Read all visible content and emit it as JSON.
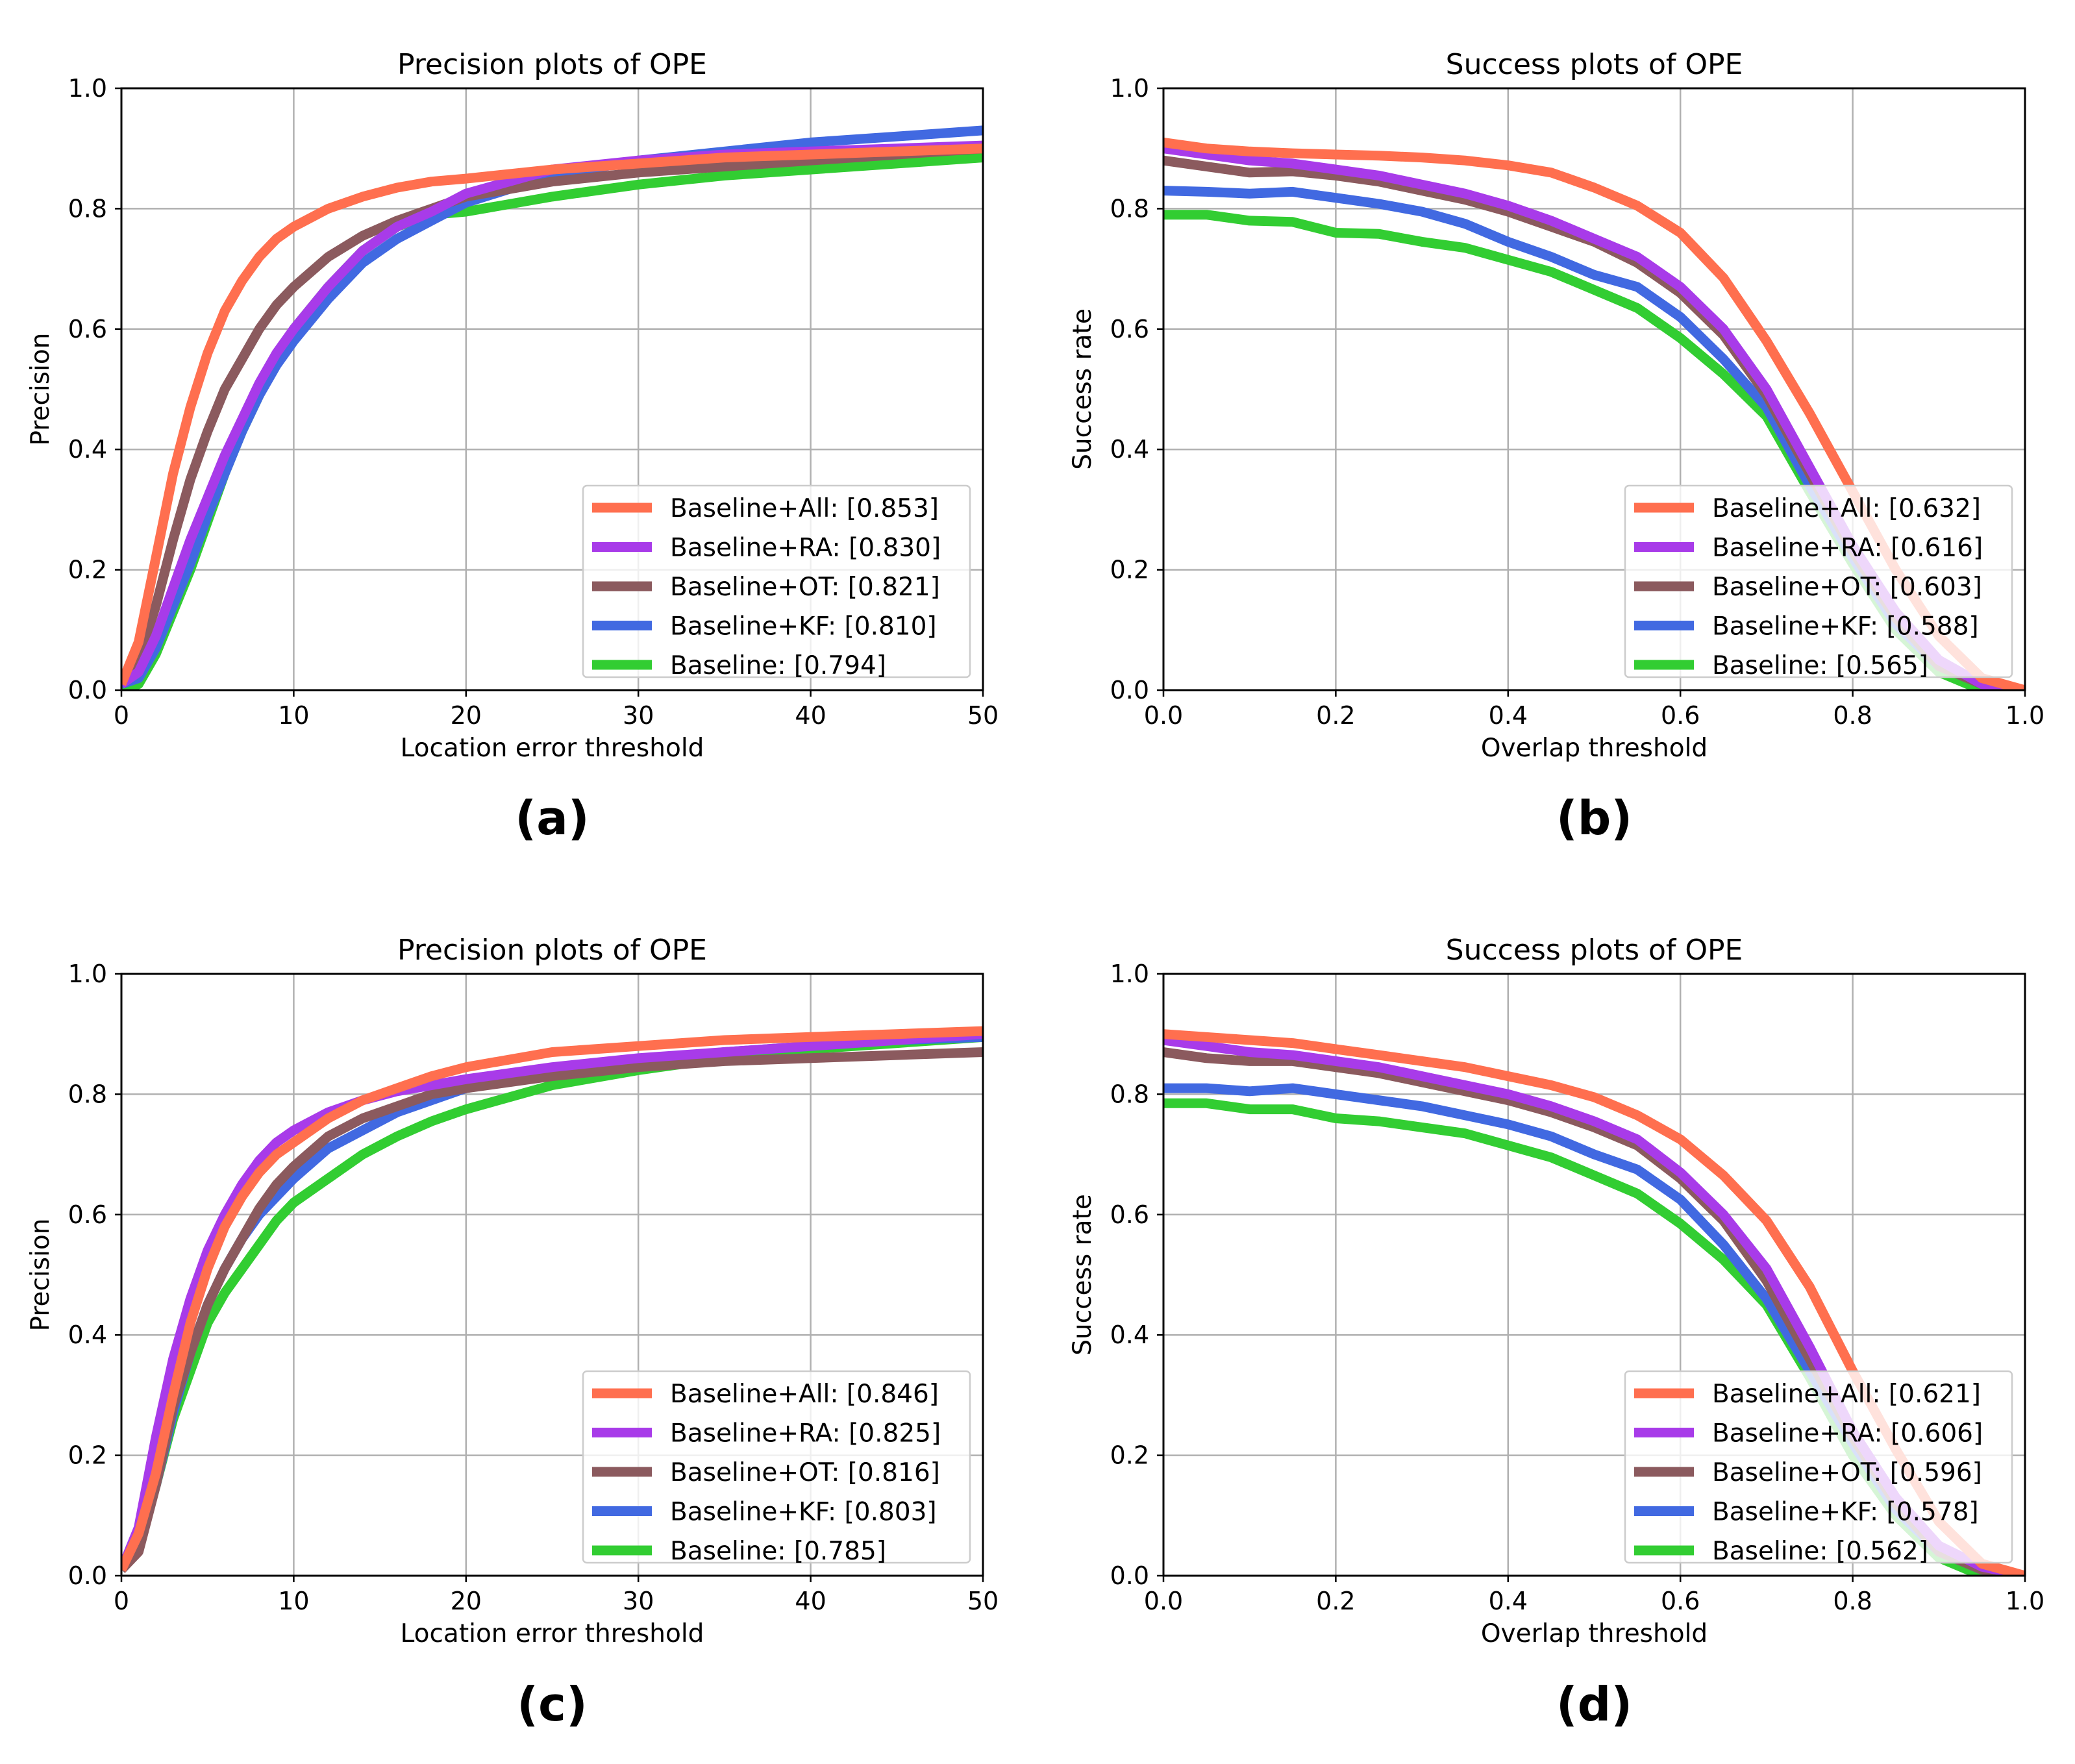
{
  "figure": {
    "panels": [
      "(a)",
      "(b)",
      "(c)",
      "(d)"
    ]
  },
  "colors": {
    "Baseline+All": "#ff6f4f",
    "Baseline+RA": "#a83be9",
    "Baseline+OT": "#8b5a5e",
    "Baseline+KF": "#4169e1",
    "Baseline": "#32cd32",
    "grid": "#b0b0b0",
    "axis": "#000000"
  },
  "chart_data": [
    {
      "id": "a",
      "type": "line",
      "title": "Precision plots of OPE",
      "xlabel": "Location error threshold",
      "ylabel": "Precision",
      "xlim": [
        0,
        50
      ],
      "ylim": [
        0,
        1
      ],
      "xticks": [
        0,
        10,
        20,
        30,
        40,
        50
      ],
      "xtick_labels": [
        "0",
        "10",
        "20",
        "30",
        "40",
        "50"
      ],
      "yticks": [
        0,
        0.2,
        0.4,
        0.6,
        0.8,
        1.0
      ],
      "ytick_labels": [
        "0.0",
        "0.2",
        "0.4",
        "0.6",
        "0.8",
        "1.0"
      ],
      "grid": true,
      "legend_position": "lower-right",
      "x": [
        0,
        1,
        2,
        3,
        4,
        5,
        6,
        7,
        8,
        9,
        10,
        12,
        14,
        16,
        18,
        20,
        25,
        30,
        35,
        40,
        45,
        50
      ],
      "series": [
        {
          "name": "Baseline+All",
          "legend": "Baseline+All: [0.853]",
          "values": [
            0.01,
            0.08,
            0.22,
            0.36,
            0.47,
            0.56,
            0.63,
            0.68,
            0.72,
            0.75,
            0.77,
            0.8,
            0.82,
            0.835,
            0.845,
            0.85,
            0.865,
            0.875,
            0.885,
            0.89,
            0.895,
            0.9
          ]
        },
        {
          "name": "Baseline+RA",
          "legend": "Baseline+RA: [0.830]",
          "values": [
            0.01,
            0.03,
            0.09,
            0.17,
            0.25,
            0.32,
            0.39,
            0.45,
            0.51,
            0.56,
            0.6,
            0.67,
            0.73,
            0.77,
            0.795,
            0.825,
            0.865,
            0.88,
            0.89,
            0.895,
            0.9,
            0.905
          ]
        },
        {
          "name": "Baseline+OT",
          "legend": "Baseline+OT: [0.821]",
          "values": [
            0.01,
            0.05,
            0.14,
            0.25,
            0.35,
            0.43,
            0.5,
            0.55,
            0.6,
            0.64,
            0.67,
            0.72,
            0.755,
            0.78,
            0.8,
            0.82,
            0.845,
            0.86,
            0.87,
            0.88,
            0.89,
            0.9
          ]
        },
        {
          "name": "Baseline+KF",
          "legend": "Baseline+KF: [0.810]",
          "values": [
            0.01,
            0.02,
            0.07,
            0.14,
            0.21,
            0.29,
            0.36,
            0.43,
            0.49,
            0.54,
            0.58,
            0.65,
            0.71,
            0.75,
            0.78,
            0.81,
            0.855,
            0.88,
            0.895,
            0.91,
            0.92,
            0.93
          ]
        },
        {
          "name": "Baseline",
          "legend": "Baseline: [0.794]",
          "values": [
            0.0,
            0.01,
            0.06,
            0.13,
            0.2,
            0.28,
            0.36,
            0.43,
            0.49,
            0.55,
            0.6,
            0.67,
            0.73,
            0.77,
            0.79,
            0.795,
            0.82,
            0.84,
            0.855,
            0.865,
            0.875,
            0.885
          ]
        }
      ]
    },
    {
      "id": "b",
      "type": "line",
      "title": "Success plots of OPE",
      "xlabel": "Overlap threshold",
      "ylabel": "Success rate",
      "xlim": [
        0,
        1
      ],
      "ylim": [
        0,
        1
      ],
      "xticks": [
        0,
        0.2,
        0.4,
        0.6,
        0.8,
        1.0
      ],
      "xtick_labels": [
        "0.0",
        "0.2",
        "0.4",
        "0.6",
        "0.8",
        "1.0"
      ],
      "yticks": [
        0,
        0.2,
        0.4,
        0.6,
        0.8,
        1.0
      ],
      "ytick_labels": [
        "0.0",
        "0.2",
        "0.4",
        "0.6",
        "0.8",
        "1.0"
      ],
      "grid": true,
      "legend_position": "lower-right",
      "x": [
        0,
        0.05,
        0.1,
        0.15,
        0.2,
        0.25,
        0.3,
        0.35,
        0.4,
        0.45,
        0.5,
        0.55,
        0.6,
        0.65,
        0.7,
        0.75,
        0.8,
        0.85,
        0.9,
        0.95,
        1.0
      ],
      "series": [
        {
          "name": "Baseline+All",
          "legend": "Baseline+All: [0.632]",
          "values": [
            0.91,
            0.9,
            0.895,
            0.892,
            0.89,
            0.888,
            0.885,
            0.88,
            0.872,
            0.86,
            0.835,
            0.805,
            0.76,
            0.685,
            0.58,
            0.46,
            0.33,
            0.2,
            0.09,
            0.02,
            0.0
          ]
        },
        {
          "name": "Baseline+RA",
          "legend": "Baseline+RA: [0.616]",
          "values": [
            0.9,
            0.89,
            0.88,
            0.875,
            0.865,
            0.855,
            0.84,
            0.825,
            0.805,
            0.78,
            0.75,
            0.72,
            0.67,
            0.6,
            0.5,
            0.37,
            0.24,
            0.13,
            0.05,
            0.01,
            0.0
          ]
        },
        {
          "name": "Baseline+OT",
          "legend": "Baseline+OT: [0.603]",
          "values": [
            0.88,
            0.87,
            0.86,
            0.862,
            0.855,
            0.845,
            0.83,
            0.815,
            0.795,
            0.77,
            0.745,
            0.71,
            0.66,
            0.59,
            0.49,
            0.36,
            0.23,
            0.12,
            0.04,
            0.01,
            0.0
          ]
        },
        {
          "name": "Baseline+KF",
          "legend": "Baseline+KF: [0.588]",
          "values": [
            0.83,
            0.828,
            0.825,
            0.828,
            0.818,
            0.808,
            0.795,
            0.775,
            0.745,
            0.72,
            0.69,
            0.67,
            0.62,
            0.55,
            0.47,
            0.34,
            0.22,
            0.11,
            0.04,
            0.01,
            0.0
          ]
        },
        {
          "name": "Baseline",
          "legend": "Baseline: [0.565]",
          "values": [
            0.79,
            0.79,
            0.78,
            0.778,
            0.76,
            0.758,
            0.745,
            0.735,
            0.715,
            0.695,
            0.665,
            0.635,
            0.585,
            0.525,
            0.455,
            0.33,
            0.21,
            0.1,
            0.03,
            0.0,
            0.0
          ]
        }
      ]
    },
    {
      "id": "c",
      "type": "line",
      "title": "Precision plots of OPE",
      "xlabel": "Location error threshold",
      "ylabel": "Precision",
      "xlim": [
        0,
        50
      ],
      "ylim": [
        0,
        1
      ],
      "xticks": [
        0,
        10,
        20,
        30,
        40,
        50
      ],
      "xtick_labels": [
        "0",
        "10",
        "20",
        "30",
        "40",
        "50"
      ],
      "yticks": [
        0,
        0.2,
        0.4,
        0.6,
        0.8,
        1.0
      ],
      "ytick_labels": [
        "0.0",
        "0.2",
        "0.4",
        "0.6",
        "0.8",
        "1.0"
      ],
      "grid": true,
      "legend_position": "lower-right",
      "x": [
        0,
        1,
        2,
        3,
        4,
        5,
        6,
        7,
        8,
        9,
        10,
        12,
        14,
        16,
        18,
        20,
        25,
        30,
        35,
        40,
        45,
        50
      ],
      "series": [
        {
          "name": "Baseline+All",
          "legend": "Baseline+All: [0.846]",
          "values": [
            0.01,
            0.07,
            0.17,
            0.3,
            0.42,
            0.51,
            0.58,
            0.63,
            0.67,
            0.7,
            0.72,
            0.76,
            0.79,
            0.81,
            0.83,
            0.845,
            0.87,
            0.88,
            0.89,
            0.895,
            0.9,
            0.905
          ]
        },
        {
          "name": "Baseline+RA",
          "legend": "Baseline+RA: [0.825]",
          "values": [
            0.01,
            0.08,
            0.23,
            0.36,
            0.46,
            0.54,
            0.6,
            0.65,
            0.69,
            0.72,
            0.74,
            0.77,
            0.79,
            0.805,
            0.815,
            0.825,
            0.845,
            0.86,
            0.87,
            0.88,
            0.89,
            0.9
          ]
        },
        {
          "name": "Baseline+OT",
          "legend": "Baseline+OT: [0.816]",
          "values": [
            0.01,
            0.04,
            0.15,
            0.28,
            0.37,
            0.45,
            0.51,
            0.56,
            0.61,
            0.65,
            0.68,
            0.73,
            0.76,
            0.78,
            0.8,
            0.81,
            0.83,
            0.845,
            0.855,
            0.86,
            0.865,
            0.87
          ]
        },
        {
          "name": "Baseline+KF",
          "legend": "Baseline+KF: [0.803]",
          "values": [
            0.01,
            0.06,
            0.15,
            0.27,
            0.37,
            0.45,
            0.51,
            0.56,
            0.6,
            0.63,
            0.66,
            0.71,
            0.74,
            0.77,
            0.79,
            0.81,
            0.835,
            0.855,
            0.87,
            0.88,
            0.89,
            0.895
          ]
        },
        {
          "name": "Baseline",
          "legend": "Baseline: [0.785]",
          "values": [
            0.01,
            0.06,
            0.15,
            0.26,
            0.34,
            0.42,
            0.47,
            0.51,
            0.55,
            0.59,
            0.62,
            0.66,
            0.7,
            0.73,
            0.755,
            0.775,
            0.815,
            0.84,
            0.86,
            0.875,
            0.885,
            0.895
          ]
        }
      ]
    },
    {
      "id": "d",
      "type": "line",
      "title": "Success plots of OPE",
      "xlabel": "Overlap threshold",
      "ylabel": "Success rate",
      "xlim": [
        0,
        1
      ],
      "ylim": [
        0,
        1
      ],
      "xticks": [
        0,
        0.2,
        0.4,
        0.6,
        0.8,
        1.0
      ],
      "xtick_labels": [
        "0.0",
        "0.2",
        "0.4",
        "0.6",
        "0.8",
        "1.0"
      ],
      "yticks": [
        0,
        0.2,
        0.4,
        0.6,
        0.8,
        1.0
      ],
      "ytick_labels": [
        "0.0",
        "0.2",
        "0.4",
        "0.6",
        "0.8",
        "1.0"
      ],
      "grid": true,
      "legend_position": "lower-right",
      "x": [
        0,
        0.05,
        0.1,
        0.15,
        0.2,
        0.25,
        0.3,
        0.35,
        0.4,
        0.45,
        0.5,
        0.55,
        0.6,
        0.65,
        0.7,
        0.75,
        0.8,
        0.85,
        0.9,
        0.95,
        1.0
      ],
      "series": [
        {
          "name": "Baseline+All",
          "legend": "Baseline+All: [0.621]",
          "values": [
            0.9,
            0.895,
            0.89,
            0.885,
            0.875,
            0.865,
            0.855,
            0.845,
            0.83,
            0.815,
            0.795,
            0.765,
            0.725,
            0.665,
            0.59,
            0.48,
            0.34,
            0.21,
            0.09,
            0.02,
            0.0
          ]
        },
        {
          "name": "Baseline+RA",
          "legend": "Baseline+RA: [0.606]",
          "values": [
            0.89,
            0.88,
            0.87,
            0.865,
            0.855,
            0.845,
            0.83,
            0.815,
            0.8,
            0.78,
            0.755,
            0.725,
            0.67,
            0.6,
            0.51,
            0.38,
            0.24,
            0.13,
            0.05,
            0.015,
            0.0
          ]
        },
        {
          "name": "Baseline+OT",
          "legend": "Baseline+OT: [0.596]",
          "values": [
            0.87,
            0.86,
            0.855,
            0.855,
            0.845,
            0.835,
            0.82,
            0.805,
            0.79,
            0.77,
            0.745,
            0.715,
            0.66,
            0.59,
            0.49,
            0.36,
            0.23,
            0.12,
            0.04,
            0.01,
            0.0
          ]
        },
        {
          "name": "Baseline+KF",
          "legend": "Baseline+KF: [0.578]",
          "values": [
            0.81,
            0.81,
            0.805,
            0.81,
            0.8,
            0.79,
            0.78,
            0.765,
            0.75,
            0.73,
            0.7,
            0.675,
            0.625,
            0.55,
            0.46,
            0.34,
            0.22,
            0.11,
            0.04,
            0.01,
            0.0
          ]
        },
        {
          "name": "Baseline",
          "legend": "Baseline: [0.562]",
          "values": [
            0.785,
            0.785,
            0.775,
            0.775,
            0.76,
            0.755,
            0.745,
            0.735,
            0.715,
            0.695,
            0.665,
            0.635,
            0.585,
            0.525,
            0.45,
            0.33,
            0.2,
            0.1,
            0.03,
            0.0,
            0.0
          ]
        }
      ]
    }
  ]
}
